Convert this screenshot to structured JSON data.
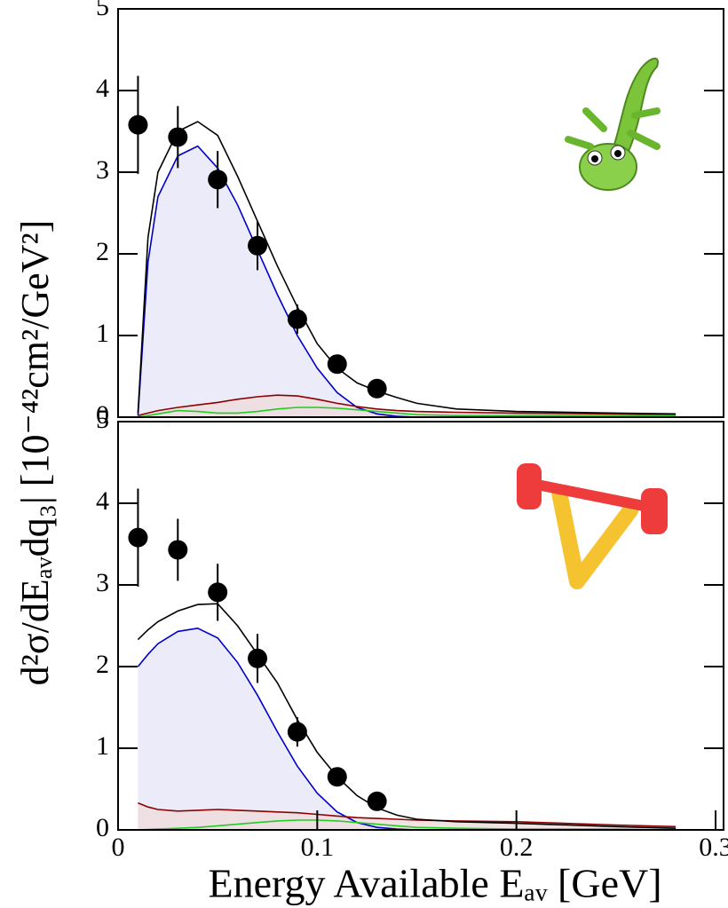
{
  "chart_data": [
    {
      "type": "line",
      "ylabel": "d²σ/dEₐᵥdq₃| [10⁻⁴²cm²/GeV²]",
      "xlim": [
        0,
        0.3
      ],
      "ylim": [
        0,
        5
      ],
      "yticks": [
        0,
        1,
        2,
        3,
        4,
        5
      ],
      "x": [
        0.01,
        0.015,
        0.02,
        0.03,
        0.04,
        0.05,
        0.06,
        0.07,
        0.08,
        0.09,
        0.1,
        0.11,
        0.12,
        0.13,
        0.14,
        0.15,
        0.17,
        0.2,
        0.25,
        0.28
      ],
      "series": [
        {
          "color": "#0000cc",
          "fill": "#e6e6f7",
          "values": [
            0.02,
            1.9,
            2.7,
            3.2,
            3.32,
            3.05,
            2.6,
            2.05,
            1.5,
            1.0,
            0.6,
            0.3,
            0.12,
            0.04,
            0.01,
            0,
            0,
            0,
            0,
            0
          ]
        },
        {
          "color": "#8b0000",
          "fill": "#eedcdc",
          "values": [
            0.02,
            0.05,
            0.08,
            0.12,
            0.15,
            0.18,
            0.22,
            0.25,
            0.27,
            0.26,
            0.22,
            0.17,
            0.13,
            0.1,
            0.08,
            0.07,
            0.06,
            0.05,
            0.04,
            0.03
          ]
        },
        {
          "color": "#22cc22",
          "values": [
            0,
            0.02,
            0.04,
            0.08,
            0.07,
            0.05,
            0.05,
            0.07,
            0.1,
            0.12,
            0.12,
            0.11,
            0.09,
            0.07,
            0.05,
            0.03,
            0.02,
            0.02,
            0.02,
            0.02
          ]
        },
        {
          "color": "#000000",
          "values": [
            0.05,
            2.2,
            3.0,
            3.5,
            3.62,
            3.45,
            2.95,
            2.4,
            1.85,
            1.35,
            0.9,
            0.6,
            0.42,
            0.32,
            0.24,
            0.17,
            0.1,
            0.07,
            0.05,
            0.04
          ]
        }
      ],
      "data_points": {
        "color": "#000000",
        "x": [
          0.01,
          0.03,
          0.05,
          0.07,
          0.09,
          0.11,
          0.13
        ],
        "values": [
          3.58,
          3.43,
          2.91,
          2.1,
          1.2,
          0.65,
          0.35
        ],
        "errors": [
          0.6,
          0.38,
          0.35,
          0.3,
          0.18,
          0.08,
          0.06
        ]
      }
    },
    {
      "type": "line",
      "xlabel": "Energy Available Eₐᵥ [GeV]",
      "xlim": [
        0,
        0.3
      ],
      "ylim": [
        0,
        5
      ],
      "yticks": [
        0,
        1,
        2,
        3,
        4,
        5
      ],
      "xticks": [
        0,
        0.1,
        0.2,
        0.3
      ],
      "x": [
        0.01,
        0.015,
        0.02,
        0.03,
        0.04,
        0.05,
        0.06,
        0.07,
        0.08,
        0.09,
        0.1,
        0.11,
        0.12,
        0.13,
        0.14,
        0.15,
        0.17,
        0.2,
        0.25,
        0.28
      ],
      "series": [
        {
          "color": "#0000cc",
          "fill": "#e6e6f7",
          "values": [
            2.0,
            2.15,
            2.28,
            2.43,
            2.47,
            2.35,
            2.05,
            1.65,
            1.2,
            0.78,
            0.45,
            0.22,
            0.09,
            0.03,
            0.01,
            0,
            0,
            0,
            0,
            0
          ]
        },
        {
          "color": "#8b0000",
          "fill": "#eedcdc",
          "values": [
            0.33,
            0.28,
            0.25,
            0.23,
            0.24,
            0.25,
            0.24,
            0.23,
            0.22,
            0.21,
            0.19,
            0.17,
            0.15,
            0.14,
            0.13,
            0.12,
            0.11,
            0.1,
            0.06,
            0.04
          ]
        },
        {
          "color": "#22cc22",
          "values": [
            0,
            0.005,
            0.01,
            0.02,
            0.03,
            0.05,
            0.07,
            0.09,
            0.11,
            0.12,
            0.12,
            0.11,
            0.09,
            0.07,
            0.05,
            0.03,
            0.02,
            0.01,
            0.01,
            0
          ]
        },
        {
          "color": "#000000",
          "values": [
            2.33,
            2.45,
            2.55,
            2.68,
            2.76,
            2.77,
            2.5,
            2.15,
            1.8,
            1.35,
            0.95,
            0.65,
            0.42,
            0.27,
            0.18,
            0.13,
            0.1,
            0.08,
            0.04,
            0.02
          ]
        }
      ],
      "data_points": {
        "color": "#000000",
        "x": [
          0.01,
          0.03,
          0.05,
          0.07,
          0.09,
          0.11,
          0.13
        ],
        "values": [
          3.58,
          3.43,
          2.91,
          2.1,
          1.2,
          0.65,
          0.35
        ],
        "errors": [
          0.6,
          0.38,
          0.35,
          0.3,
          0.18,
          0.08,
          0.06
        ]
      }
    }
  ]
}
